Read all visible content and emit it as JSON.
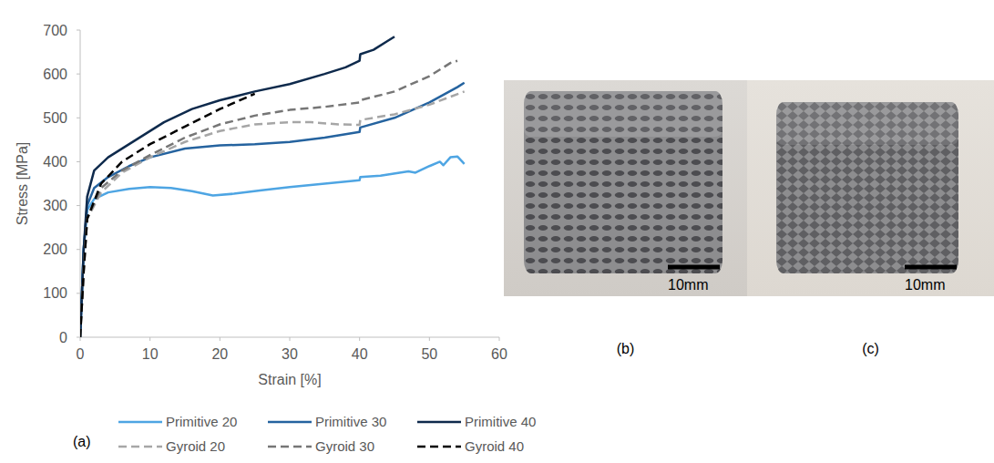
{
  "chart_data": {
    "type": "line",
    "label": "(a)",
    "x_label": "Strain [%]",
    "y_label": "Stress [MPa]",
    "xlim": [
      0,
      60
    ],
    "xticks": [
      0,
      10,
      20,
      30,
      40,
      50,
      60
    ],
    "ylim": [
      0,
      700
    ],
    "yticks": [
      0,
      100,
      200,
      300,
      400,
      500,
      600,
      700
    ],
    "grid": false,
    "legend": "bottom",
    "series": [
      {
        "name": "Primitive 20",
        "color": "#4ea5e3",
        "line_style": "solid",
        "x": [
          0,
          0.5,
          1,
          2,
          4,
          7,
          10,
          13,
          16,
          19,
          22,
          26,
          30,
          35,
          40,
          40.1,
          43,
          47,
          48,
          50,
          51.5,
          52,
          53,
          54,
          55
        ],
        "values": [
          0,
          200,
          290,
          315,
          330,
          338,
          342,
          340,
          333,
          323,
          327,
          335,
          342,
          350,
          358,
          365,
          368,
          378,
          375,
          390,
          400,
          392,
          410,
          412,
          395
        ]
      },
      {
        "name": "Primitive 30",
        "color": "#25639f",
        "line_style": "solid",
        "x": [
          0,
          0.5,
          1,
          2,
          4,
          7,
          10,
          15,
          20,
          25,
          30,
          35,
          40,
          40.1,
          45,
          50,
          54,
          55
        ],
        "values": [
          0,
          200,
          300,
          340,
          365,
          390,
          410,
          430,
          437,
          440,
          445,
          455,
          468,
          478,
          500,
          535,
          570,
          580
        ]
      },
      {
        "name": "Primitive 40",
        "color": "#0e2a4c",
        "line_style": "solid",
        "x": [
          0,
          0.5,
          1,
          2,
          4,
          8,
          12,
          16,
          20,
          25,
          30,
          35,
          38,
          40,
          40.1,
          42,
          44,
          45
        ],
        "values": [
          0,
          200,
          320,
          380,
          410,
          450,
          490,
          520,
          540,
          560,
          577,
          600,
          615,
          630,
          645,
          655,
          675,
          685
        ]
      },
      {
        "name": "Gyroid 20",
        "color": "#a6a6a6",
        "line_style": "dashed",
        "x": [
          0,
          0.5,
          1,
          3,
          6,
          10,
          15,
          20,
          25,
          30,
          33,
          37,
          40,
          40.1,
          45,
          50,
          55
        ],
        "values": [
          0,
          150,
          270,
          330,
          375,
          410,
          445,
          470,
          485,
          490,
          490,
          485,
          484,
          495,
          508,
          530,
          560
        ]
      },
      {
        "name": "Gyroid 30",
        "color": "#767676",
        "line_style": "dashed",
        "x": [
          0,
          0.5,
          1,
          3,
          6,
          10,
          15,
          20,
          25,
          30,
          35,
          40,
          40.1,
          45,
          50,
          53,
          54
        ],
        "values": [
          0,
          150,
          270,
          340,
          380,
          415,
          455,
          485,
          505,
          518,
          525,
          535,
          540,
          560,
          595,
          625,
          630
        ]
      },
      {
        "name": "Gyroid 40",
        "color": "#000000",
        "line_style": "dashed",
        "x": [
          0,
          0.5,
          1,
          3,
          6,
          10,
          15,
          20,
          25
        ],
        "values": [
          0,
          150,
          270,
          350,
          400,
          440,
          480,
          520,
          555
        ]
      }
    ]
  },
  "photos": [
    {
      "label": "(b)",
      "scale_bar": "10mm"
    },
    {
      "label": "(c)",
      "scale_bar": "10mm"
    }
  ]
}
